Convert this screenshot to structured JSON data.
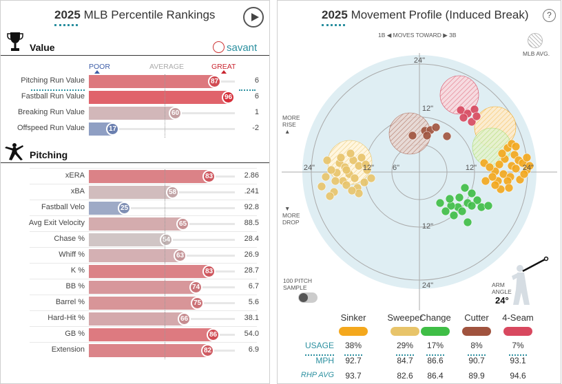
{
  "left": {
    "title_year": "2025",
    "title_rest": "MLB Percentile Rankings",
    "brand": "savant",
    "scale": {
      "poor": "POOR",
      "average": "AVERAGE",
      "great": "GREAT"
    },
    "value_section": {
      "label": "Value",
      "rows": [
        {
          "name": "Pitching Run Value",
          "pct": 87,
          "value": "6"
        },
        {
          "name": "Fastball Run Value",
          "pct": 96,
          "value": "6"
        },
        {
          "name": "Breaking Run Value",
          "pct": 60,
          "value": "1"
        },
        {
          "name": "Offspeed Run Value",
          "pct": 17,
          "value": "-2"
        }
      ]
    },
    "pitching_section": {
      "label": "Pitching",
      "rows": [
        {
          "name": "xERA",
          "pct": 83,
          "value": "2.86"
        },
        {
          "name": "xBA",
          "pct": 58,
          "value": ".241"
        },
        {
          "name": "Fastball Velo",
          "pct": 25,
          "value": "92.8"
        },
        {
          "name": "Avg Exit Velocity",
          "pct": 65,
          "value": "88.5"
        },
        {
          "name": "Chase %",
          "pct": 54,
          "value": "28.4"
        },
        {
          "name": "Whiff %",
          "pct": 63,
          "value": "26.9"
        },
        {
          "name": "K %",
          "pct": 83,
          "value": "28.7"
        },
        {
          "name": "BB %",
          "pct": 74,
          "value": "6.7"
        },
        {
          "name": "Barrel %",
          "pct": 75,
          "value": "5.6"
        },
        {
          "name": "Hard-Hit %",
          "pct": 66,
          "value": "38.1"
        },
        {
          "name": "GB %",
          "pct": 86,
          "value": "54.0"
        },
        {
          "name": "Extension",
          "pct": 82,
          "value": "6.9"
        }
      ]
    }
  },
  "right": {
    "title_year": "2025",
    "title_rest": "Movement Profile (Induced Break)",
    "help": "?",
    "direction": {
      "left": "1B",
      "middle": "MOVES TOWARD",
      "right": "3B"
    },
    "mlb_avg_label": "MLB AVG.",
    "more_rise": [
      "MORE",
      "RISE"
    ],
    "more_drop": [
      "MORE",
      "DROP"
    ],
    "ring_labels": {
      "top24": "24\"",
      "top12": "12\"",
      "left24": "24\"",
      "left12": "12\"",
      "left6": "6\"",
      "right12": "12\"",
      "right24": "24\"",
      "bottom12": "12\"",
      "bottom24": "24\""
    },
    "sample_label": [
      "100 PITCH",
      "SAMPLE"
    ],
    "arm_angle_label": [
      "ARM",
      "ANGLE"
    ],
    "arm_angle_value": "24°",
    "row_labels": {
      "usage": "USAGE",
      "mph": "MPH",
      "rhp_avg": "RHP AVG"
    },
    "pitches": [
      {
        "name": "Sinker",
        "color": "#f4a81d",
        "usage": "38%",
        "mph": "92.7",
        "rhp_avg": "93.7"
      },
      {
        "name": "Sweeper",
        "color": "#e8c46a",
        "usage": "29%",
        "mph": "84.7",
        "rhp_avg": "82.6"
      },
      {
        "name": "Change",
        "color": "#3fbe46",
        "usage": "17%",
        "mph": "86.6",
        "rhp_avg": "86.4"
      },
      {
        "name": "Cutter",
        "color": "#a0533e",
        "usage": "8%",
        "mph": "90.7",
        "rhp_avg": "89.9"
      },
      {
        "name": "4-Seam",
        "color": "#d8485f",
        "usage": "7%",
        "mph": "93.1",
        "rhp_avg": "94.6"
      }
    ]
  }
}
